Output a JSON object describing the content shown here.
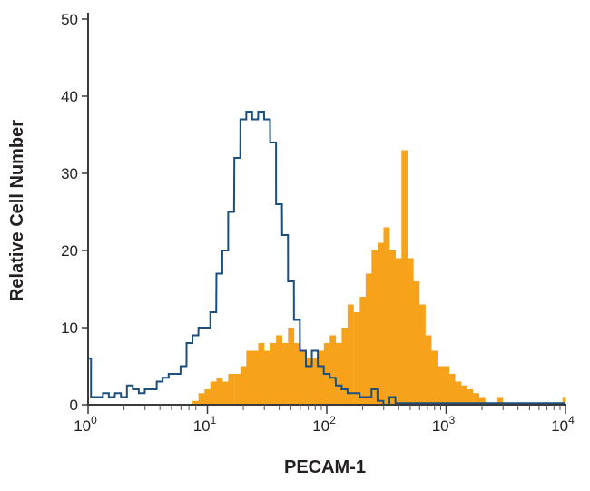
{
  "chart_data": {
    "type": "area",
    "title": "",
    "xlabel": "PECAM-1",
    "ylabel": "Relative Cell Number",
    "xscale": "log",
    "xlim": [
      1,
      10000
    ],
    "ylim": [
      0,
      50
    ],
    "grid": false,
    "x_ticks": [
      {
        "base": "10",
        "exp": "0"
      },
      {
        "base": "10",
        "exp": "1"
      },
      {
        "base": "10",
        "exp": "2"
      },
      {
        "base": "10",
        "exp": "3"
      },
      {
        "base": "10",
        "exp": "4"
      }
    ],
    "y_ticks": [
      "0",
      "10",
      "20",
      "30",
      "40",
      "50"
    ],
    "x": [
      1,
      1.12,
      1.26,
      1.41,
      1.58,
      1.78,
      2.0,
      2.24,
      2.51,
      2.82,
      3.16,
      3.55,
      3.98,
      4.47,
      5.01,
      5.62,
      6.31,
      7.08,
      7.94,
      8.91,
      10,
      11.2,
      12.6,
      14.1,
      15.8,
      17.8,
      20.0,
      22.4,
      25.1,
      28.2,
      31.6,
      35.5,
      39.8,
      44.7,
      50.1,
      56.2,
      63.1,
      70.8,
      79.4,
      89.1,
      100,
      112,
      126,
      141,
      158,
      178,
      200,
      224,
      251,
      282,
      316,
      355,
      398,
      447,
      501,
      562,
      631,
      708,
      794,
      891,
      1000,
      1120,
      1260,
      1410,
      1580,
      1780,
      2000,
      2240,
      2510,
      2820,
      3160,
      3550,
      3980,
      4470,
      5010,
      5620,
      6310,
      7080,
      7940,
      8910,
      10000
    ],
    "series": [
      {
        "style": "outline",
        "color": "#1b4f7e",
        "values": [
          6,
          1,
          1,
          1.5,
          1,
          1.5,
          1,
          2.5,
          2,
          1.5,
          2,
          2,
          3,
          3.5,
          4,
          4,
          5,
          8,
          9,
          10,
          10,
          12,
          17,
          20,
          25,
          32,
          37,
          38,
          37,
          38,
          37,
          34,
          26,
          22,
          16,
          11,
          7,
          5,
          7,
          5,
          4,
          3.5,
          2.5,
          2,
          1.5,
          1.5,
          1,
          1,
          2,
          0.5,
          0,
          1,
          0.2,
          0.2,
          0.2,
          0.2,
          0.2,
          0.2,
          0.2,
          0.2,
          0.2,
          0.2,
          0.2,
          0.2,
          0.2,
          0.2,
          0.2,
          0.2,
          0.2,
          0.2,
          0.2,
          0.2,
          0.2,
          0.2,
          0.2,
          0.2,
          0.2,
          0.2,
          0.2,
          0.2,
          0.2
        ]
      },
      {
        "style": "filled",
        "color": "#f7a21b",
        "values": [
          0,
          0,
          0,
          0,
          0,
          0,
          0,
          0,
          0,
          0,
          0,
          0,
          0,
          0,
          0,
          0,
          0,
          0,
          0.5,
          1.5,
          2,
          3,
          3.5,
          3,
          4,
          4,
          5,
          7,
          7,
          8,
          7,
          8,
          9,
          8,
          10,
          8,
          7,
          6,
          6,
          7,
          8,
          9,
          8,
          10,
          13,
          12,
          14,
          17,
          20,
          21,
          23,
          20,
          19,
          33,
          19,
          16,
          13,
          9,
          7,
          5,
          5,
          4,
          3,
          2.5,
          2,
          1.5,
          1,
          0.3,
          0.3,
          1,
          0.3,
          0.3,
          0.3,
          0.3,
          0.3,
          0.3,
          0.3,
          0.3,
          0.3,
          0.3,
          1
        ]
      }
    ]
  }
}
